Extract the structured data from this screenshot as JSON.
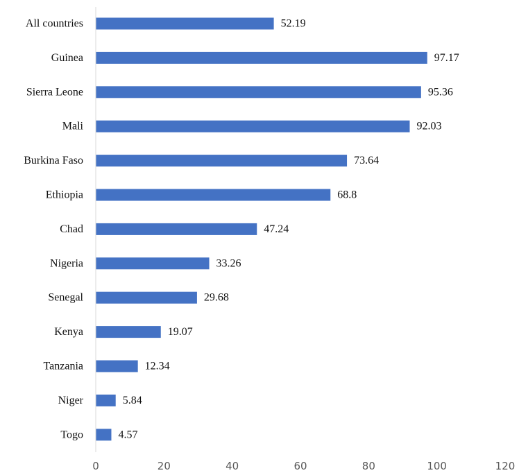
{
  "chart_data": {
    "type": "bar",
    "orientation": "horizontal",
    "categories": [
      "All countries",
      "Guinea",
      "Sierra Leone",
      "Mali",
      "Burkina Faso",
      "Ethiopia",
      "Chad",
      "Nigeria",
      "Senegal",
      "Kenya",
      "Tanzania",
      "Niger",
      "Togo"
    ],
    "values": [
      52.19,
      97.17,
      95.36,
      92.03,
      73.64,
      68.8,
      47.24,
      33.26,
      29.68,
      19.07,
      12.34,
      5.84,
      4.57
    ],
    "value_labels": [
      "52.19",
      "97.17",
      "95.36",
      "92.03",
      "73.64",
      "68.8",
      "47.24",
      "33.26",
      "29.68",
      "19.07",
      "12.34",
      "5.84",
      "4.57"
    ],
    "x_ticks": [
      "0",
      "20",
      "40",
      "60",
      "80",
      "100",
      "120"
    ],
    "xlim": [
      0,
      120
    ],
    "title": "",
    "xlabel": "",
    "ylabel": "",
    "grid": false,
    "legend": false,
    "bar_color": "#4472c4"
  }
}
